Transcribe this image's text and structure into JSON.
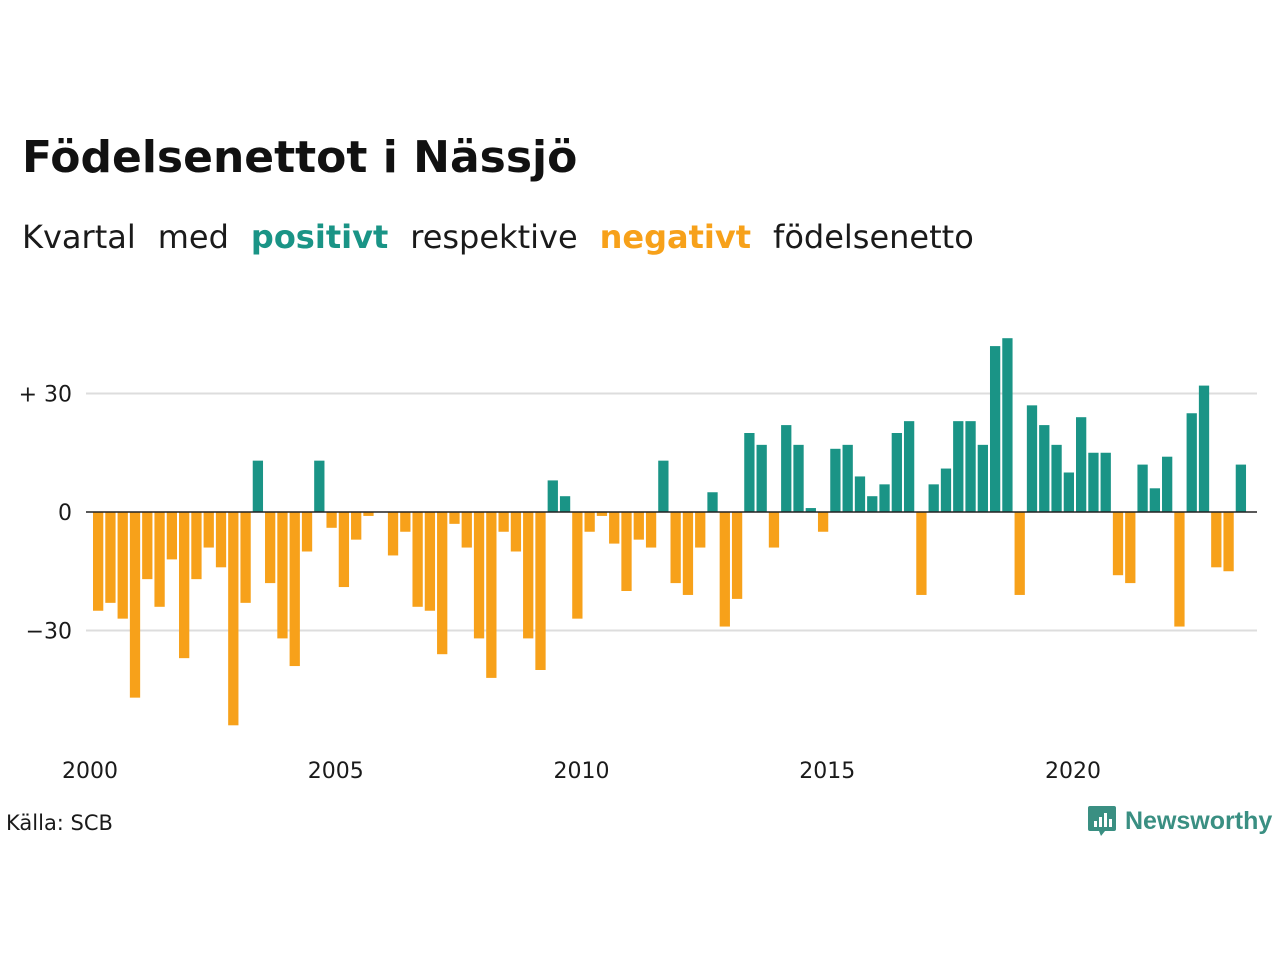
{
  "title": "Födelsenettot i Nässjö",
  "subtitle": {
    "part1": "Kvartal",
    "part2": "med",
    "positive": "positivt",
    "part3": "respektive",
    "negative": "negativt",
    "part4": "födelsenetto"
  },
  "source": "Källa: SCB",
  "logo": {
    "text": "Newsworthy",
    "icon": "newsworthy-chart-icon"
  },
  "colors": {
    "positive": "#1a9486",
    "negative": "#f7a11a",
    "grid": "#dddddd",
    "zero": "#222222"
  },
  "chart_data": {
    "type": "bar",
    "x_start": 2000,
    "x_step": 0.25,
    "y_ticks": [
      30,
      0,
      -30
    ],
    "y_tick_labels": [
      "+ 30",
      "0",
      "−30"
    ],
    "x_ticks": [
      2000,
      2005,
      2010,
      2015,
      2020
    ],
    "x_tick_labels": [
      "2000",
      "2005",
      "2010",
      "2015",
      "2020"
    ],
    "ylim": [
      -54,
      45
    ],
    "grid": true,
    "values": [
      -25,
      -23,
      -27,
      -47,
      -17,
      -24,
      -12,
      -37,
      -17,
      -9,
      -14,
      -54,
      -23,
      13,
      -18,
      -32,
      -39,
      -10,
      13,
      -4,
      -19,
      -7,
      -1,
      0,
      -11,
      -5,
      -24,
      -25,
      -36,
      -3,
      -9,
      -32,
      -42,
      -5,
      -10,
      -32,
      -40,
      8,
      4,
      -27,
      -5,
      -1,
      -8,
      -20,
      -7,
      -9,
      13,
      -18,
      -21,
      -9,
      5,
      -29,
      -22,
      20,
      17,
      -9,
      22,
      17,
      1,
      -5,
      16,
      17,
      9,
      4,
      7,
      20,
      23,
      -21,
      7,
      11,
      23,
      23,
      17,
      42,
      44,
      -21,
      27,
      22,
      17,
      10,
      24,
      15,
      15,
      -16,
      -18,
      12,
      6,
      14,
      -29,
      25,
      32,
      -14,
      -15,
      12
    ]
  }
}
